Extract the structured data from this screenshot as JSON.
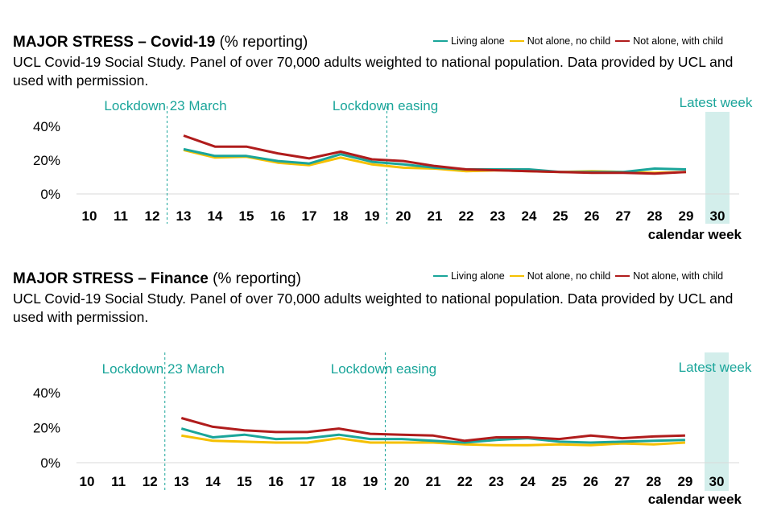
{
  "chart_data": [
    {
      "type": "line",
      "title_bold": "MAJOR STRESS – Covid-19",
      "title_rest": "(% reporting)",
      "subtitle": "UCL Covid-19 Social Study. Panel of over 70,000 adults weighted to national population. Data provided by UCL and used with permission.",
      "xlabel": "calendar week",
      "categories": [
        "10",
        "11",
        "12",
        "13",
        "14",
        "15",
        "16",
        "17",
        "18",
        "19",
        "20",
        "21",
        "22",
        "23",
        "24",
        "25",
        "26",
        "27",
        "28",
        "29",
        "30"
      ],
      "y_ticks": [
        "40%",
        "20%",
        "0%"
      ],
      "ylim": [
        0,
        40
      ],
      "annotations": [
        {
          "label": "Lockdown 23 March",
          "after_week": "12"
        },
        {
          "label": "Lockdown easing",
          "after_week": "19"
        }
      ],
      "highlight": {
        "label": "Latest week",
        "week": "30"
      },
      "series": [
        {
          "name": "Living alone",
          "color": "#1aa59a",
          "values": [
            null,
            null,
            null,
            26.5,
            22.5,
            22.5,
            19.5,
            18,
            23.5,
            19,
            17.5,
            15.5,
            14.5,
            14.5,
            14.5,
            13,
            13,
            13,
            15,
            14.5,
            null
          ]
        },
        {
          "name": "Not alone, no child",
          "color": "#f5c000",
          "values": [
            null,
            null,
            null,
            26,
            21.5,
            22,
            18.5,
            17,
            21.5,
            17.5,
            15.5,
            15,
            13.5,
            14,
            13.5,
            13,
            13.5,
            13,
            12.5,
            13,
            null
          ]
        },
        {
          "name": "Not alone, with child",
          "color": "#b01c1c",
          "values": [
            null,
            null,
            null,
            34.5,
            28,
            28,
            24,
            21,
            25,
            20.5,
            19.5,
            16.5,
            14.5,
            14,
            13.5,
            13,
            12.5,
            12.5,
            12,
            13,
            null
          ]
        }
      ]
    },
    {
      "type": "line",
      "title_bold": "MAJOR STRESS – Finance",
      "title_rest": "(% reporting)",
      "subtitle": "UCL Covid-19 Social Study. Panel of over 70,000 adults weighted to national population. Data provided by UCL and used with permission.",
      "xlabel": "calendar week",
      "categories": [
        "10",
        "11",
        "12",
        "13",
        "14",
        "15",
        "16",
        "17",
        "18",
        "19",
        "20",
        "21",
        "22",
        "23",
        "24",
        "25",
        "26",
        "27",
        "28",
        "29",
        "30"
      ],
      "y_ticks": [
        "40%",
        "20%",
        "0%"
      ],
      "ylim": [
        0,
        40
      ],
      "annotations": [
        {
          "label": "Lockdown 23 March",
          "after_week": "12"
        },
        {
          "label": "Lockdown easing",
          "after_week": "19"
        }
      ],
      "highlight": {
        "label": "Latest week",
        "week": "30"
      },
      "series": [
        {
          "name": "Living alone",
          "color": "#1aa59a",
          "values": [
            null,
            null,
            null,
            19.5,
            14.5,
            16,
            13.5,
            14,
            16,
            13.5,
            13.5,
            12.5,
            11.5,
            13,
            14,
            12,
            11.5,
            12,
            12.5,
            13,
            null
          ]
        },
        {
          "name": "Not alone, no child",
          "color": "#f5c000",
          "values": [
            null,
            null,
            null,
            15.5,
            12.5,
            12,
            11.5,
            11.5,
            14,
            11.5,
            11.5,
            11.5,
            10.5,
            10,
            10,
            10.5,
            10,
            11,
            10.5,
            11.5,
            null
          ]
        },
        {
          "name": "Not alone, with child",
          "color": "#b01c1c",
          "values": [
            null,
            null,
            null,
            25.5,
            20.5,
            18.5,
            17.5,
            17.5,
            19.5,
            16.5,
            16,
            15.5,
            12.5,
            14.5,
            14.5,
            13.5,
            15.5,
            14,
            15,
            15.5,
            null
          ]
        }
      ]
    }
  ]
}
